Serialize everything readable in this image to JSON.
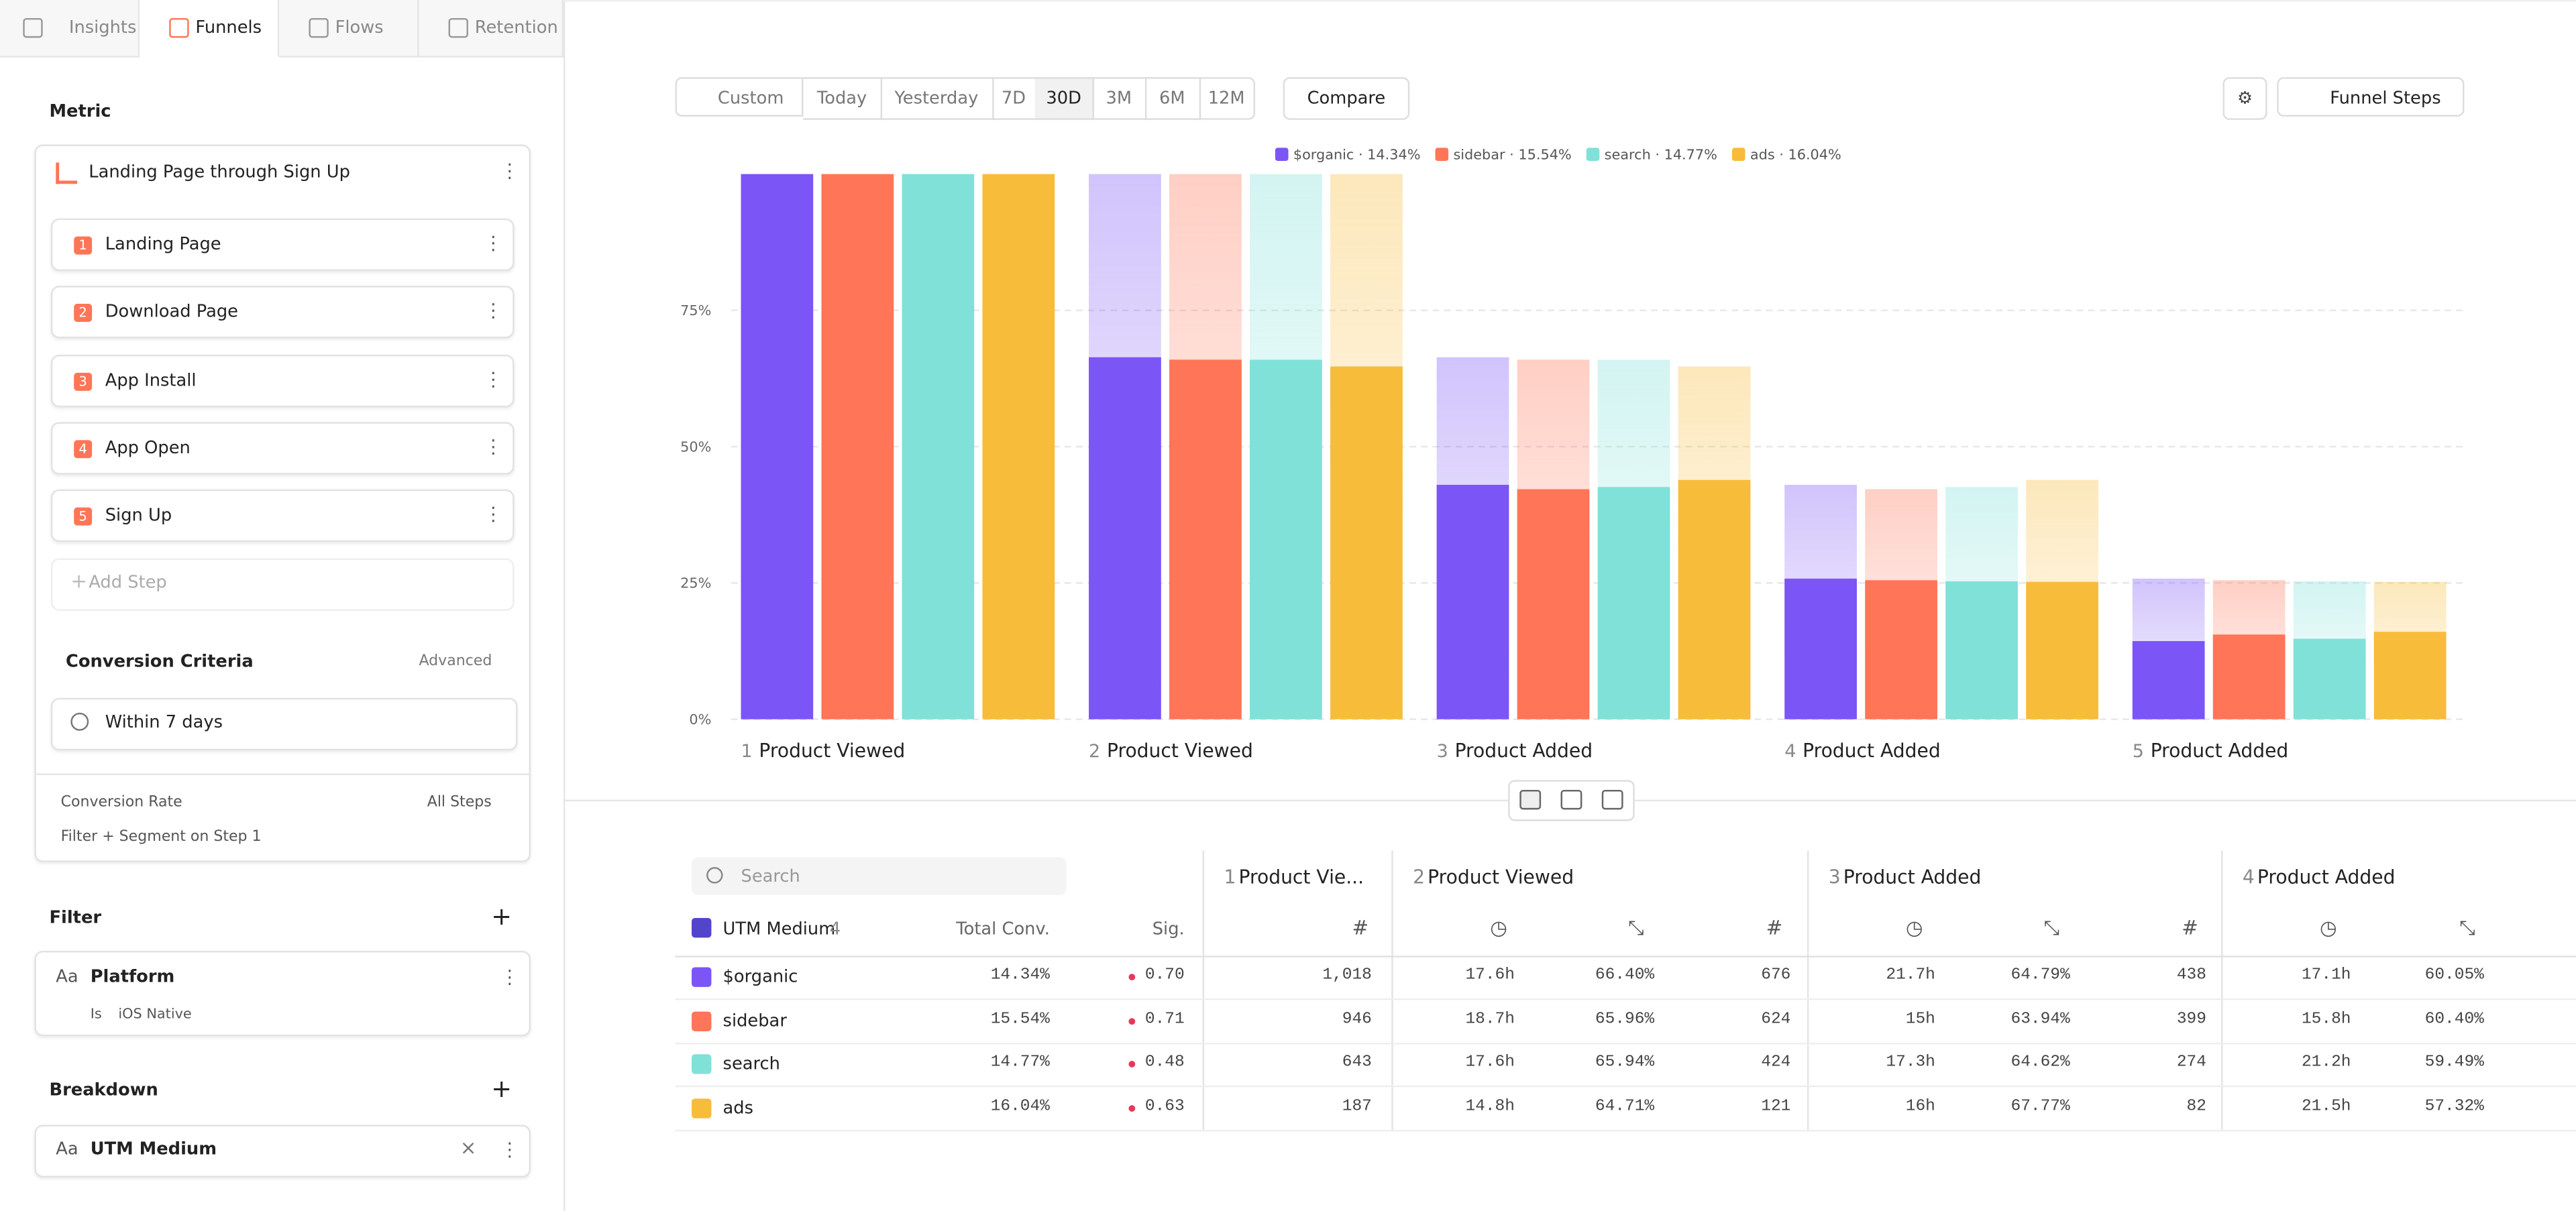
{
  "tabs": [
    "Insights",
    "Funnels",
    "Flows",
    "Retention"
  ],
  "sidebar": {
    "metric_heading": "Metric",
    "funnel_name": "Landing Page through Sign Up",
    "steps": [
      {
        "number": "1",
        "name": "Landing Page"
      },
      {
        "number": "2",
        "name": "Download Page"
      },
      {
        "number": "3",
        "name": "App Install"
      },
      {
        "number": "4",
        "name": "App Open"
      },
      {
        "number": "5",
        "name": "Sign Up"
      }
    ],
    "add_step": "Add Step",
    "criteria_title": "Conversion Criteria",
    "criteria_mode": "Advanced",
    "criteria_window": "Within 7 days",
    "rate_label": "Conversion Rate",
    "rate_value": "All Steps",
    "filter_segment": "Filter + Segment on Step 1",
    "filter_title": "Filter",
    "filter_property": "Platform",
    "filter_operator": "Is",
    "filter_value": "iOS Native",
    "aa": "Aa",
    "breakdown_title": "Breakdown",
    "breakdown_property": "UTM Medium"
  },
  "toolbar": {
    "ranges": [
      "Custom",
      "Today",
      "Yesterday",
      "7D",
      "30D",
      "3M",
      "6M",
      "12M"
    ],
    "compare": "Compare",
    "view": "Funnel Steps"
  },
  "chart_data": {
    "type": "bar",
    "category_numbers": [
      "1",
      "2",
      "3",
      "4",
      "5"
    ],
    "categories": [
      "Product Viewed",
      "Product Viewed",
      "Product Added",
      "Product Added",
      "Product Added"
    ],
    "series": [
      {
        "name": "$organic · 14.34%",
        "color": "#7b55f6",
        "values": [
          100,
          66.4,
          43.0,
          25.8,
          14.34
        ]
      },
      {
        "name": "sidebar · 15.54%",
        "color": "#ff7557",
        "values": [
          100,
          65.96,
          42.2,
          25.5,
          15.54
        ]
      },
      {
        "name": "search · 14.77%",
        "color": "#80e1d9",
        "values": [
          100,
          65.94,
          42.6,
          25.3,
          14.77
        ]
      },
      {
        "name": "ads · 16.04%",
        "color": "#f8bc3b",
        "values": [
          100,
          64.71,
          43.9,
          25.2,
          16.04
        ]
      }
    ],
    "ylim": [
      0,
      100
    ],
    "yticks": [
      {
        "value": 0,
        "label": "0%"
      },
      {
        "value": 25,
        "label": "25%"
      },
      {
        "value": 50,
        "label": "50%"
      },
      {
        "value": 75,
        "label": "75%"
      }
    ],
    "grid": true
  },
  "table": {
    "search_placeholder": "Search",
    "breakdown_label": "UTM Medium",
    "breakdown_count": "4",
    "total_conv_header": "Total Conv.",
    "sig_header": "Sig.",
    "steps": [
      {
        "number": "1",
        "name": "Product Vie..."
      },
      {
        "number": "2",
        "name": "Product Viewed"
      },
      {
        "number": "3",
        "name": "Product Added"
      },
      {
        "number": "4",
        "name": "Product Added"
      }
    ],
    "rows": [
      {
        "name": "$organic",
        "total_conv": "14.34%",
        "sig": "0.70",
        "cells": [
          "1,018",
          "17.6h",
          "66.40%",
          "676",
          "21.7h",
          "64.79%",
          "438",
          "17.1h",
          "60.05%"
        ]
      },
      {
        "name": "sidebar",
        "total_conv": "15.54%",
        "sig": "0.71",
        "cells": [
          "946",
          "18.7h",
          "65.96%",
          "624",
          "15h",
          "63.94%",
          "399",
          "15.8h",
          "60.40%"
        ]
      },
      {
        "name": "search",
        "total_conv": "14.77%",
        "sig": "0.48",
        "cells": [
          "643",
          "17.6h",
          "65.94%",
          "424",
          "17.3h",
          "64.62%",
          "274",
          "21.2h",
          "59.49%"
        ]
      },
      {
        "name": "ads",
        "total_conv": "16.04%",
        "sig": "0.63",
        "cells": [
          "187",
          "14.8h",
          "64.71%",
          "121",
          "16h",
          "67.77%",
          "82",
          "21.5h",
          "57.32%"
        ]
      }
    ]
  }
}
